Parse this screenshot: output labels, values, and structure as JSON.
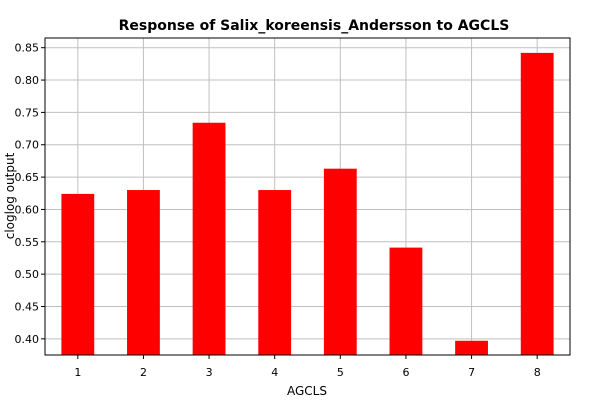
{
  "chart_data": {
    "type": "bar",
    "title": "Response of Salix_koreensis_Andersson to AGCLS",
    "xlabel": "AGCLS",
    "ylabel": "cloglog output",
    "categories": [
      "1",
      "2",
      "3",
      "4",
      "5",
      "6",
      "7",
      "8"
    ],
    "values": [
      0.624,
      0.63,
      0.734,
      0.63,
      0.663,
      0.541,
      0.397,
      0.842
    ],
    "ylim": [
      0.375,
      0.865
    ],
    "yticks": [
      0.4,
      0.45,
      0.5,
      0.55,
      0.6,
      0.65,
      0.7,
      0.75,
      0.8,
      0.85
    ],
    "ytick_labels": [
      "0.40",
      "0.45",
      "0.50",
      "0.55",
      "0.60",
      "0.65",
      "0.70",
      "0.75",
      "0.80",
      "0.85"
    ],
    "grid": true,
    "bar_color": "#ff0000"
  }
}
